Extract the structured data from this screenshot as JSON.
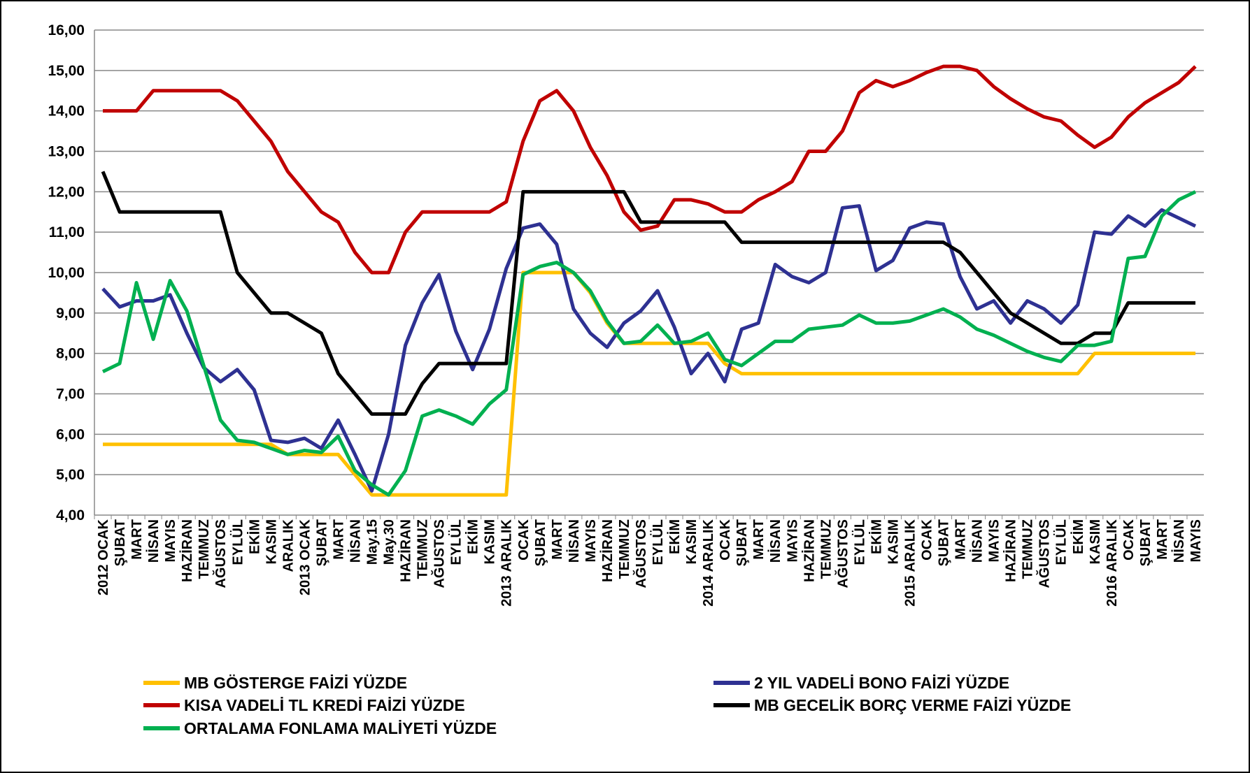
{
  "chart_data": {
    "type": "line",
    "categories": [
      "2012 OCAK",
      "ŞUBAT",
      "MART",
      "NİSAN",
      "MAYIS",
      "HAZİRAN",
      "TEMMUZ",
      "AĞUSTOS",
      "EYLÜL",
      "EKİM",
      "KASIM",
      "ARALIK",
      "2013 OCAK",
      "ŞUBAT",
      "MART",
      "NİSAN",
      "May.15",
      "May.30",
      "HAZİRAN",
      "TEMMUZ",
      "AĞUSTOS",
      "EYLÜL",
      "EKİM",
      "KASIM",
      "2013 ARALIK",
      "OCAK",
      "ŞUBAT",
      "MART",
      "NİSAN",
      "MAYIS",
      "HAZİRAN",
      "TEMMUZ",
      "AĞUSTOS",
      "EYLÜL",
      "EKİM",
      "KASIM",
      "2014 ARALIK",
      "OCAK",
      "ŞUBAT",
      "MART",
      "NİSAN",
      "MAYIS",
      "HAZİRAN",
      "TEMMUZ",
      "AĞUSTOS",
      "EYLÜL",
      "EKİM",
      "KASIM",
      "2015 ARALIK",
      "OCAK",
      "ŞUBAT",
      "MART",
      "NİSAN",
      "MAYIS",
      "HAZİRAN",
      "TEMMUZ",
      "AĞUSTOS",
      "EYLÜL",
      "EKİM",
      "KASIM",
      "2016 ARALIK",
      "OCAK",
      "ŞUBAT",
      "MART",
      "NİSAN",
      "MAYIS"
    ],
    "series": [
      {
        "name": "MB GÖSTERGE FAİZİ YÜZDE",
        "color": "#FFC000",
        "values": [
          5.75,
          5.75,
          5.75,
          5.75,
          5.75,
          5.75,
          5.75,
          5.75,
          5.75,
          5.75,
          5.75,
          5.5,
          5.5,
          5.5,
          5.5,
          5.0,
          4.5,
          4.5,
          4.5,
          4.5,
          4.5,
          4.5,
          4.5,
          4.5,
          4.5,
          10,
          10,
          10,
          10,
          9.5,
          8.75,
          8.25,
          8.25,
          8.25,
          8.25,
          8.25,
          8.25,
          7.75,
          7.5,
          7.5,
          7.5,
          7.5,
          7.5,
          7.5,
          7.5,
          7.5,
          7.5,
          7.5,
          7.5,
          7.5,
          7.5,
          7.5,
          7.5,
          7.5,
          7.5,
          7.5,
          7.5,
          7.5,
          7.5,
          8,
          8,
          8,
          8,
          8,
          8,
          8
        ]
      },
      {
        "name": "2 YIL VADELİ BONO FAİZİ YÜZDE",
        "color": "#2E3192",
        "values": [
          9.6,
          9.15,
          9.3,
          9.3,
          9.45,
          8.5,
          7.65,
          7.3,
          7.6,
          7.1,
          5.85,
          5.8,
          5.9,
          5.65,
          6.35,
          5.5,
          4.6,
          6.0,
          8.2,
          9.25,
          9.95,
          8.55,
          7.6,
          8.6,
          10.1,
          11.1,
          11.2,
          10.7,
          9.1,
          8.5,
          8.15,
          8.75,
          9.05,
          9.55,
          8.65,
          7.5,
          8.0,
          7.3,
          8.6,
          8.75,
          10.2,
          9.9,
          9.75,
          10,
          11.6,
          11.65,
          10.05,
          10.3,
          11.1,
          11.25,
          11.2,
          9.9,
          9.1,
          9.3,
          8.75,
          9.3,
          9.1,
          8.75,
          9.2,
          11,
          10.95,
          11.4,
          11.15,
          11.55,
          11.35,
          11.15
        ]
      },
      {
        "name": "KISA VADELİ TL KREDİ FAİZİ YÜZDE",
        "color": "#C00000",
        "values": [
          14,
          14,
          14,
          14.5,
          14.5,
          14.5,
          14.5,
          14.5,
          14.25,
          13.75,
          13.25,
          12.5,
          12,
          11.5,
          11.25,
          10.5,
          10,
          10,
          11,
          11.5,
          11.5,
          11.5,
          11.5,
          11.5,
          11.75,
          13.25,
          14.25,
          14.5,
          14,
          13.1,
          12.4,
          11.5,
          11.05,
          11.15,
          11.8,
          11.8,
          11.7,
          11.5,
          11.5,
          11.8,
          12,
          12.25,
          13,
          13,
          13.5,
          14.45,
          14.75,
          14.6,
          14.75,
          14.95,
          15.1,
          15.1,
          15,
          14.6,
          14.3,
          14.05,
          13.85,
          13.75,
          13.4,
          13.1,
          13.35,
          13.85,
          14.2,
          14.45,
          14.7,
          15.1
        ]
      },
      {
        "name": "MB GECELİK BORÇ VERME FAİZİ YÜZDE",
        "color": "#000000",
        "values": [
          12.5,
          11.5,
          11.5,
          11.5,
          11.5,
          11.5,
          11.5,
          11.5,
          10,
          9.5,
          9,
          9,
          8.75,
          8.5,
          7.5,
          7,
          6.5,
          6.5,
          6.5,
          7.25,
          7.75,
          7.75,
          7.75,
          7.75,
          7.75,
          12,
          12,
          12,
          12,
          12,
          12,
          12,
          11.25,
          11.25,
          11.25,
          11.25,
          11.25,
          11.25,
          10.75,
          10.75,
          10.75,
          10.75,
          10.75,
          10.75,
          10.75,
          10.75,
          10.75,
          10.75,
          10.75,
          10.75,
          10.75,
          10.5,
          10,
          9.5,
          9,
          8.75,
          8.5,
          8.25,
          8.25,
          8.5,
          8.5,
          9.25,
          9.25,
          9.25,
          9.25,
          9.25
        ]
      },
      {
        "name": "ORTALAMA FONLAMA MALİYETİ YÜZDE",
        "color": "#00B050",
        "values": [
          7.55,
          7.75,
          9.75,
          8.35,
          9.8,
          9.05,
          7.7,
          6.35,
          5.85,
          5.8,
          5.65,
          5.5,
          5.6,
          5.55,
          5.95,
          5.1,
          4.75,
          4.5,
          5.1,
          6.45,
          6.6,
          6.45,
          6.25,
          6.75,
          7.1,
          9.95,
          10.15,
          10.25,
          10,
          9.55,
          8.8,
          8.25,
          8.3,
          8.7,
          8.25,
          8.3,
          8.5,
          7.85,
          7.7,
          8.0,
          8.3,
          8.3,
          8.6,
          8.65,
          8.7,
          8.95,
          8.75,
          8.75,
          8.8,
          8.95,
          9.1,
          8.9,
          8.6,
          8.45,
          8.25,
          8.05,
          7.9,
          7.8,
          8.2,
          8.2,
          8.3,
          10.35,
          10.4,
          11.4,
          11.8,
          12
        ]
      }
    ],
    "ylim": [
      4,
      16
    ],
    "yticks": [
      {
        "value": 4,
        "label": "4,00"
      },
      {
        "value": 5,
        "label": "5,00"
      },
      {
        "value": 6,
        "label": "6,00"
      },
      {
        "value": 7,
        "label": "7,00"
      },
      {
        "value": 8,
        "label": "8,00"
      },
      {
        "value": 9,
        "label": "9,00"
      },
      {
        "value": 10,
        "label": "10,00"
      },
      {
        "value": 11,
        "label": "11,00"
      },
      {
        "value": 12,
        "label": "12,00"
      },
      {
        "value": 13,
        "label": "13,00"
      },
      {
        "value": 14,
        "label": "14,00"
      },
      {
        "value": 15,
        "label": "15,00"
      },
      {
        "value": 16,
        "label": "16,00"
      }
    ],
    "grid": true,
    "legend": "bottom"
  }
}
